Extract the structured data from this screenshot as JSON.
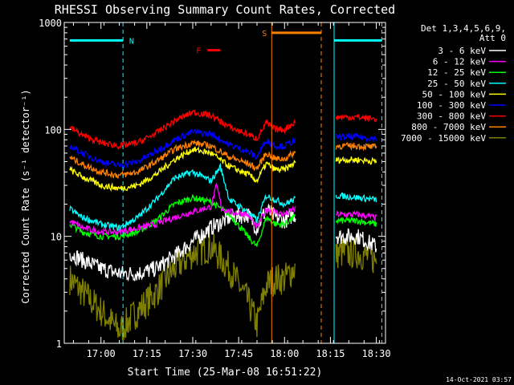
{
  "chart_data": {
    "type": "line",
    "title": "RHESSI Observing Summary Count Rates, Corrected",
    "xlabel": "Start Time (25-Mar-08 16:51:22)",
    "ylabel": "Corrected Count Rate (s⁻¹ detector⁻¹)",
    "x_range_min": [
      16.8,
      18.55
    ],
    "ylim": [
      1,
      1000
    ],
    "yscale": "log",
    "x_ticks": [
      "17:00",
      "17:15",
      "17:30",
      "17:45",
      "18:00",
      "18:15",
      "18:30"
    ],
    "x_tick_values_min": [
      17.0,
      17.25,
      17.5,
      17.75,
      18.0,
      18.25,
      18.5
    ],
    "y_ticks": [
      "1",
      "10",
      "100",
      "1000"
    ],
    "y_tick_values": [
      1,
      10,
      100,
      1000
    ],
    "legend_header": [
      "Det 1,3,4,5,6,9,",
      "Att 0"
    ],
    "legend_placement": "right",
    "timestamp": "14-Oct-2021 03:57",
    "flags": [
      {
        "label": "N",
        "color": "#00ffff",
        "segments_min": [
          [
            16.83,
            17.12
          ],
          [
            18.27,
            18.53
          ]
        ],
        "y": 680
      },
      {
        "label": "S",
        "color": "#ff8000",
        "segments_min": [
          [
            17.93,
            18.2
          ]
        ],
        "y": 800
      },
      {
        "label": "F",
        "color": "#ff0000",
        "segments_min": [
          [
            17.58,
            17.65
          ]
        ],
        "y": 550
      }
    ],
    "vlines": [
      {
        "x": 17.12,
        "color": "#00ffff",
        "style": "dashed"
      },
      {
        "x": 17.93,
        "color": "#ff8000",
        "style": "solid"
      },
      {
        "x": 18.2,
        "color": "#ff8000",
        "style": "dashed"
      },
      {
        "x": 18.27,
        "color": "#00ffff",
        "style": "solid"
      },
      {
        "x": 18.53,
        "color": "#00ffff",
        "style": "dashed"
      }
    ],
    "series": [
      {
        "name": "3 - 6 keV",
        "color": "#ffffff",
        "x": [
          16.83,
          16.9,
          17.0,
          17.1,
          17.2,
          17.3,
          17.4,
          17.5,
          17.6,
          17.7,
          17.8,
          17.85,
          17.9,
          17.95,
          18.0,
          18.05,
          18.3,
          18.4,
          18.5
        ],
        "y": [
          7,
          6,
          5,
          4.5,
          4.5,
          5,
          6.5,
          9,
          12,
          15,
          16,
          12,
          18,
          15,
          14,
          16,
          10,
          10,
          8
        ]
      },
      {
        "name": "6 - 12 keV",
        "color": "#ff00ff",
        "x": [
          16.83,
          16.9,
          17.0,
          17.1,
          17.2,
          17.3,
          17.4,
          17.5,
          17.6,
          17.63,
          17.66,
          17.7,
          17.8,
          17.85,
          17.9,
          17.95,
          18.0,
          18.05,
          18.3,
          18.4,
          18.5
        ],
        "y": [
          14,
          12,
          11,
          11,
          12,
          13,
          15,
          17,
          19,
          30,
          18,
          17,
          16,
          12,
          18,
          17,
          16,
          18,
          16,
          16,
          15
        ]
      },
      {
        "name": "12 - 25 keV",
        "color": "#00ff00",
        "x": [
          16.83,
          16.9,
          17.0,
          17.1,
          17.2,
          17.3,
          17.4,
          17.5,
          17.6,
          17.7,
          17.8,
          17.85,
          17.9,
          17.95,
          18.0,
          18.05,
          18.3,
          18.4,
          18.5
        ],
        "y": [
          13,
          11,
          10,
          10,
          11,
          14,
          20,
          23,
          21,
          16,
          10,
          8,
          15,
          13,
          13,
          15,
          14,
          14,
          13
        ]
      },
      {
        "name": "25 - 50 keV",
        "color": "#00ffff",
        "x": [
          16.83,
          16.9,
          17.0,
          17.1,
          17.2,
          17.3,
          17.4,
          17.5,
          17.6,
          17.65,
          17.7,
          17.8,
          17.85,
          17.9,
          17.95,
          18.0,
          18.05,
          18.3,
          18.4,
          18.5
        ],
        "y": [
          18,
          15,
          13,
          12,
          15,
          22,
          35,
          40,
          33,
          45,
          22,
          17,
          14,
          24,
          22,
          20,
          22,
          24,
          23,
          22
        ]
      },
      {
        "name": "50 - 100 keV",
        "color": "#ffff00",
        "x": [
          16.83,
          16.9,
          17.0,
          17.1,
          17.2,
          17.3,
          17.4,
          17.5,
          17.6,
          17.7,
          17.8,
          17.85,
          17.9,
          17.95,
          18.0,
          18.05,
          18.3,
          18.4,
          18.5
        ],
        "y": [
          42,
          36,
          30,
          28,
          30,
          38,
          52,
          65,
          60,
          45,
          38,
          33,
          48,
          42,
          42,
          48,
          52,
          52,
          50
        ]
      },
      {
        "name": "100 - 300 keV",
        "color": "#0000ff",
        "x": [
          16.83,
          16.9,
          17.0,
          17.1,
          17.2,
          17.3,
          17.4,
          17.5,
          17.6,
          17.7,
          17.8,
          17.85,
          17.9,
          17.95,
          18.0,
          18.05,
          18.3,
          18.4,
          18.5
        ],
        "y": [
          70,
          60,
          50,
          46,
          50,
          62,
          80,
          95,
          90,
          72,
          62,
          55,
          80,
          70,
          70,
          78,
          85,
          85,
          82
        ]
      },
      {
        "name": "300 - 800 keV",
        "color": "#ff0000",
        "x": [
          16.83,
          16.9,
          17.0,
          17.1,
          17.2,
          17.3,
          17.4,
          17.5,
          17.6,
          17.7,
          17.8,
          17.85,
          17.9,
          17.95,
          18.0,
          18.05,
          18.3,
          18.4,
          18.5
        ],
        "y": [
          105,
          88,
          75,
          70,
          75,
          92,
          120,
          145,
          135,
          105,
          90,
          82,
          115,
          100,
          100,
          115,
          130,
          130,
          125
        ]
      },
      {
        "name": "800 - 7000 keV",
        "color": "#ff8000",
        "x": [
          16.83,
          16.9,
          17.0,
          17.1,
          17.2,
          17.3,
          17.4,
          17.5,
          17.6,
          17.7,
          17.8,
          17.85,
          17.9,
          17.95,
          18.0,
          18.05,
          18.3,
          18.4,
          18.5
        ],
        "y": [
          55,
          47,
          40,
          37,
          40,
          50,
          65,
          75,
          70,
          55,
          48,
          43,
          60,
          53,
          53,
          60,
          70,
          70,
          68
        ]
      },
      {
        "name": "7000 - 15000 keV",
        "color": "#808000",
        "x": [
          16.83,
          16.9,
          17.0,
          17.1,
          17.2,
          17.3,
          17.4,
          17.5,
          17.6,
          17.7,
          17.8,
          17.85,
          17.9,
          17.95,
          18.0,
          18.05,
          18.3,
          18.4,
          18.5
        ],
        "y": [
          4,
          3,
          2,
          1.3,
          2,
          3,
          5,
          7,
          8,
          5,
          2.5,
          1.5,
          3.5,
          4,
          4,
          5,
          7,
          7,
          6
        ]
      }
    ]
  }
}
